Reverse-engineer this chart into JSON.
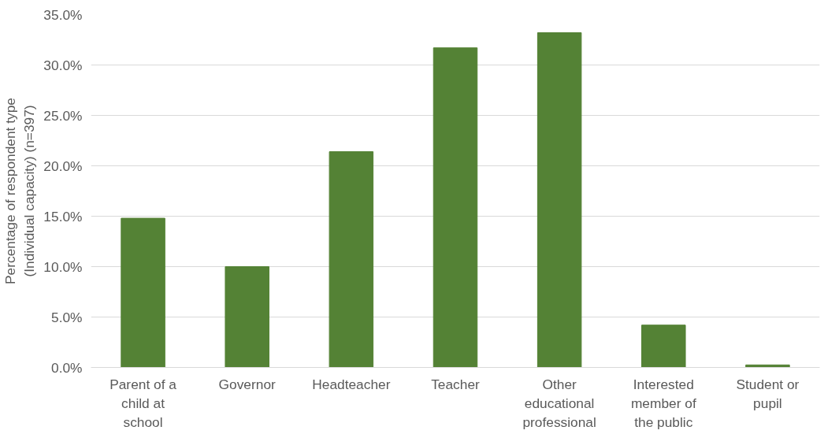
{
  "chart_data": {
    "type": "bar",
    "ylabel": "Percentage of respondent type (Individual capacity) (n=397)",
    "categories": [
      "Parent of a child at school",
      "Governor",
      "Headteacher",
      "Teacher",
      "Other educational professional",
      "Interested member of the public",
      "Student or pupil"
    ],
    "values": [
      14.8,
      10.0,
      21.4,
      31.7,
      33.2,
      4.2,
      0.25
    ],
    "color": "#548235",
    "ylim": [
      0,
      35
    ],
    "yticks": [
      {
        "value": 0,
        "label": "0.0%"
      },
      {
        "value": 5,
        "label": "5.0%"
      },
      {
        "value": 10,
        "label": "10.0%"
      },
      {
        "value": 15,
        "label": "15.0%"
      },
      {
        "value": 20,
        "label": "20.0%"
      },
      {
        "value": 25,
        "label": "25.0%"
      },
      {
        "value": 30,
        "label": "30.0%"
      },
      {
        "value": 35,
        "label": "35.0%"
      }
    ],
    "grid": "y"
  }
}
